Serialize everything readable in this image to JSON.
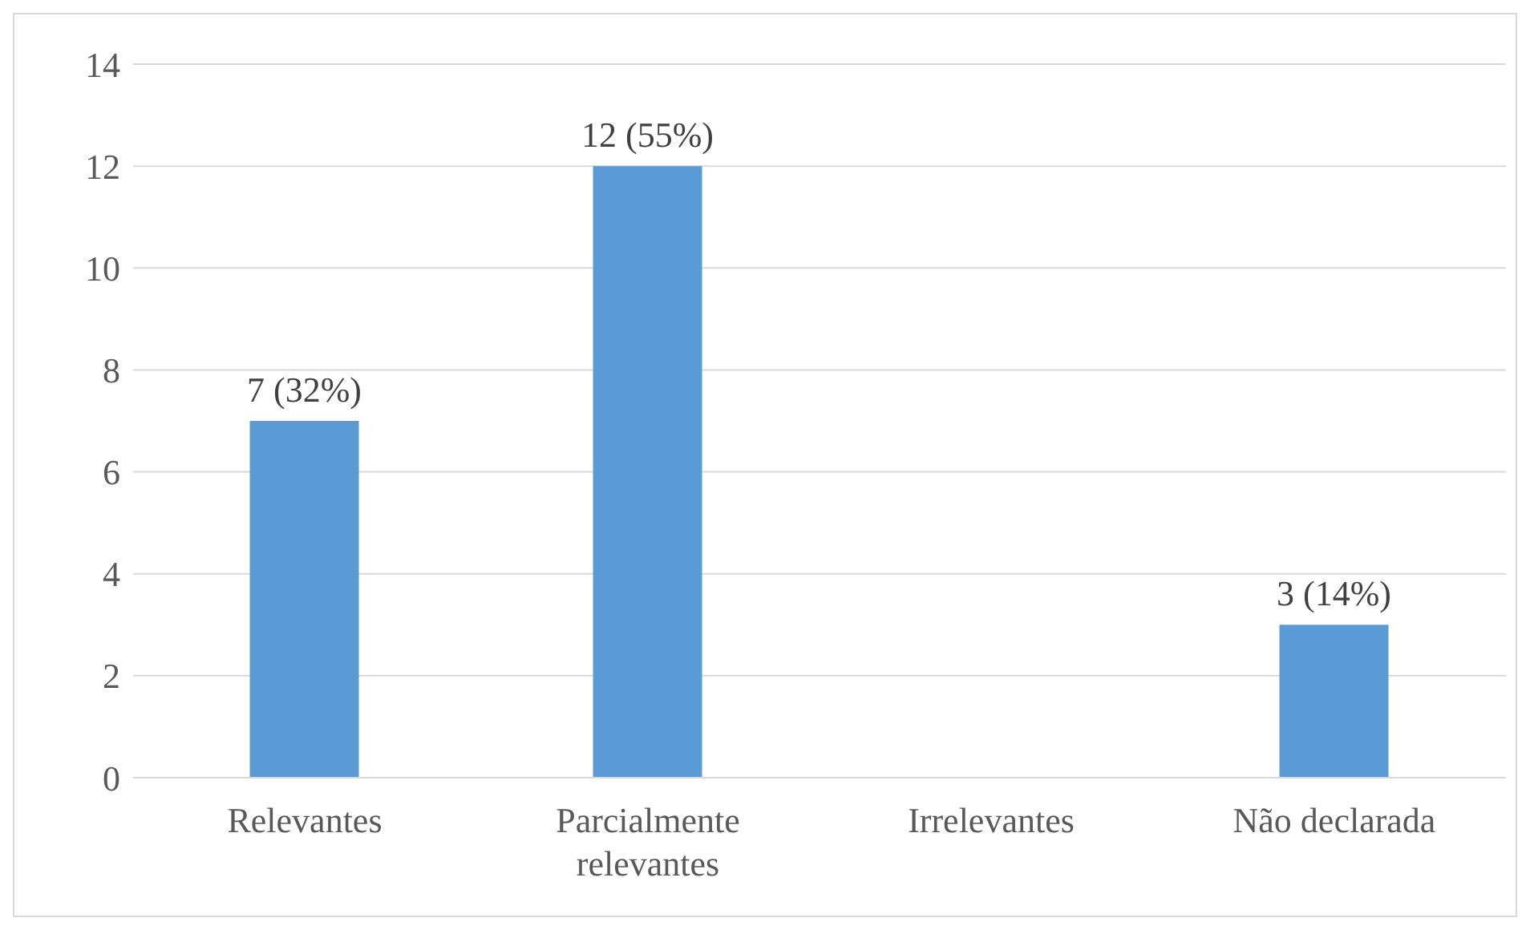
{
  "chart_data": {
    "type": "bar",
    "categories": [
      "Relevantes",
      "Parcialmente relevantes",
      "Irrelevantes",
      "Não declarada"
    ],
    "values": [
      7,
      12,
      0,
      3
    ],
    "value_labels": [
      "7 (32%)",
      "12 (55%)",
      null,
      "3 (14%)"
    ],
    "color": "#5b9bd5",
    "ylim": [
      0,
      14
    ],
    "yticks": [
      0,
      2,
      4,
      6,
      8,
      10,
      12,
      14
    ],
    "grid": "y",
    "legend": false
  }
}
